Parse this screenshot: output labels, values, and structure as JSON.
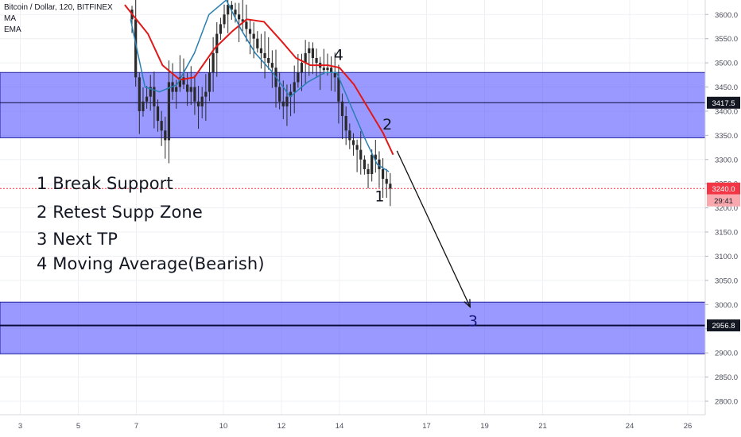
{
  "header": {
    "symbol": "Bitcoin / Dollar, 120, BITFINEX",
    "indicator_1": "MA",
    "indicator_2": "EMA"
  },
  "annotations": {
    "notes": [
      "1 Break Support",
      "2 Retest Supp Zone",
      "3 Next TP",
      "4 Moving Average(Bearish)"
    ],
    "markers": [
      {
        "label": "4",
        "x": 13.97,
        "y": 3506
      },
      {
        "label": "2",
        "x": 15.65,
        "y": 3362
      },
      {
        "label": "1",
        "x": 15.38,
        "y": 3213
      },
      {
        "label": "3",
        "x": 18.6,
        "y": 2955
      }
    ],
    "arrow": {
      "from": {
        "x": 15.98,
        "y": 3318
      },
      "to": {
        "x": 18.5,
        "y": 2995
      }
    }
  },
  "price_labels": {
    "zone_line_upper": "3417.5",
    "current_price": "3240.0",
    "countdown": "29:41",
    "zone_line_lower": "2956.8"
  },
  "colors": {
    "zone_fill": "#5b5bff",
    "zone_border": "#1e1ea0",
    "candle": "#2a2a2a",
    "ma_line": "#e01818",
    "ema_line": "#2a7fb0",
    "current_price": "#f23645"
  },
  "chart_data": {
    "type": "candlestick",
    "x_ticks": [
      "3",
      "5",
      "7",
      "10",
      "12",
      "14",
      "17",
      "19",
      "21",
      "24",
      "26"
    ],
    "y_ticks": [
      "3600.0",
      "3550.0",
      "3500.0",
      "3450.0",
      "3400.0",
      "3350.0",
      "3300.0",
      "3250.0",
      "3200.0",
      "3150.0",
      "3100.0",
      "3050.0",
      "3000.0",
      "2950.0",
      "2900.0",
      "2850.0",
      "2800.0"
    ],
    "ylim": [
      2772,
      3630
    ],
    "zones": [
      {
        "top": 3480,
        "bottom": 3345,
        "line": 3417.5
      },
      {
        "top": 3005,
        "bottom": 2898,
        "line": 2956.8
      }
    ],
    "current_price": 3240.0,
    "closes": [
      3590,
      3470,
      3400,
      3420,
      3430,
      3450,
      3410,
      3380,
      3360,
      3340,
      3460,
      3440,
      3450,
      3470,
      3455,
      3440,
      3450,
      3420,
      3410,
      3430,
      3440,
      3480,
      3520,
      3560,
      3580,
      3600,
      3620,
      3610,
      3600,
      3590,
      3585,
      3570,
      3560,
      3550,
      3530,
      3520,
      3510,
      3500,
      3490,
      3450,
      3420,
      3410,
      3430,
      3440,
      3460,
      3480,
      3500,
      3520,
      3530,
      3510,
      3500,
      3490,
      3485,
      3490,
      3480,
      3470,
      3420,
      3390,
      3360,
      3340,
      3330,
      3320,
      3300,
      3280,
      3270,
      3310,
      3300,
      3280,
      3260,
      3250,
      3240
    ],
    "ma": [
      {
        "x": 6.6,
        "y": 3620
      },
      {
        "x": 7.4,
        "y": 3560
      },
      {
        "x": 7.9,
        "y": 3495
      },
      {
        "x": 8.5,
        "y": 3465
      },
      {
        "x": 9.0,
        "y": 3470
      },
      {
        "x": 9.7,
        "y": 3530
      },
      {
        "x": 10.3,
        "y": 3565
      },
      {
        "x": 10.8,
        "y": 3590
      },
      {
        "x": 11.4,
        "y": 3585
      },
      {
        "x": 12.0,
        "y": 3545
      },
      {
        "x": 12.5,
        "y": 3510
      },
      {
        "x": 13.0,
        "y": 3495
      },
      {
        "x": 13.6,
        "y": 3495
      },
      {
        "x": 14.0,
        "y": 3490
      },
      {
        "x": 14.5,
        "y": 3455
      },
      {
        "x": 15.0,
        "y": 3405
      },
      {
        "x": 15.5,
        "y": 3355
      },
      {
        "x": 15.85,
        "y": 3310
      }
    ],
    "ema": [
      {
        "x": 6.8,
        "y": 3590
      },
      {
        "x": 7.3,
        "y": 3450
      },
      {
        "x": 7.8,
        "y": 3440
      },
      {
        "x": 8.4,
        "y": 3455
      },
      {
        "x": 9.0,
        "y": 3520
      },
      {
        "x": 9.5,
        "y": 3600
      },
      {
        "x": 10.1,
        "y": 3630
      },
      {
        "x": 10.6,
        "y": 3570
      },
      {
        "x": 11.1,
        "y": 3520
      },
      {
        "x": 11.7,
        "y": 3480
      },
      {
        "x": 12.3,
        "y": 3430
      },
      {
        "x": 12.9,
        "y": 3460
      },
      {
        "x": 13.5,
        "y": 3480
      },
      {
        "x": 13.9,
        "y": 3480
      },
      {
        "x": 14.4,
        "y": 3410
      },
      {
        "x": 14.9,
        "y": 3340
      },
      {
        "x": 15.3,
        "y": 3290
      },
      {
        "x": 15.7,
        "y": 3275
      }
    ]
  }
}
